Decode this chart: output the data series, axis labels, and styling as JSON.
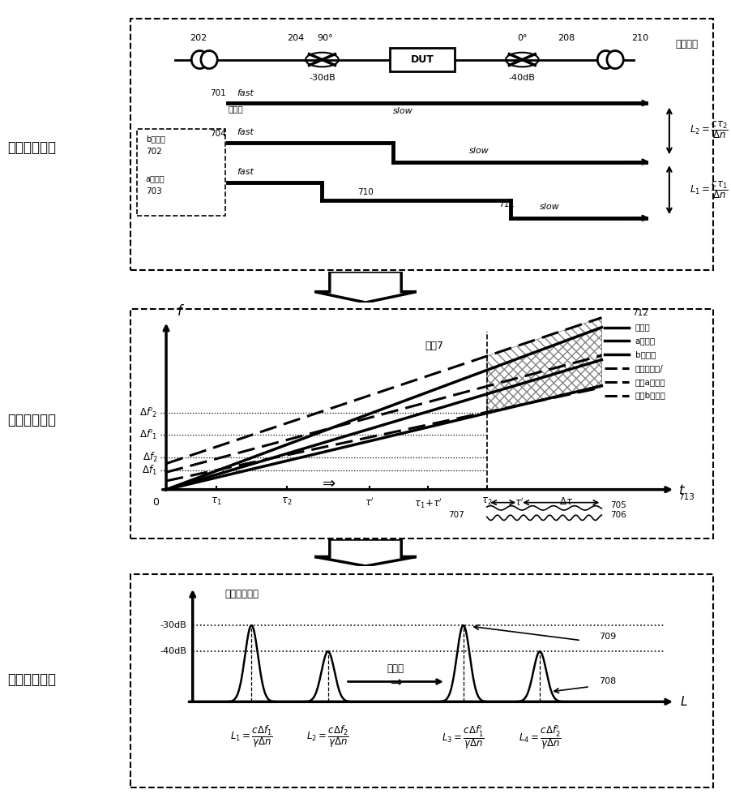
{
  "bg_color": "#ffffff",
  "panel1_label": "光程追踪原理",
  "panel2_label": "扫描测试过程",
  "panel3_label": "频域解调结果",
  "opdiff": "光程差：",
  "chuanshugu": "传输光",
  "b_coupling": "b耦合光",
  "a_coupling": "a耦合光",
  "slope_label": "斜獸7",
  "freq_shift": "频移后",
  "pzcq": "偏振串音强度",
  "legend_chuanshugu": "传输光",
  "legend_a": "a耦合光",
  "legend_b": "b耦合光",
  "legend_freq_chuanshugu": "频移传输光/",
  "legend_freq_a": "频移a耦合光",
  "legend_freq_b": "频移b耦合光"
}
